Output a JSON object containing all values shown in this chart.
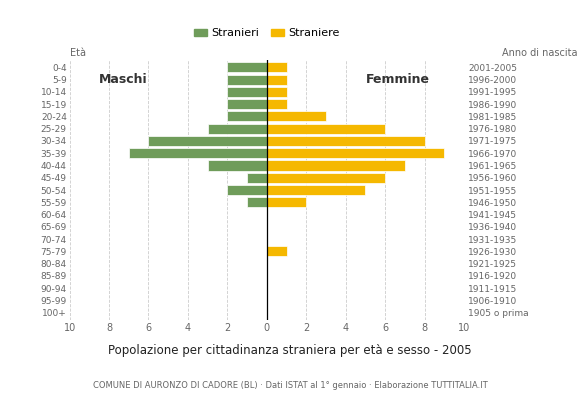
{
  "age_groups": [
    "100+",
    "95-99",
    "90-94",
    "85-89",
    "80-84",
    "75-79",
    "70-74",
    "65-69",
    "60-64",
    "55-59",
    "50-54",
    "45-49",
    "40-44",
    "35-39",
    "30-34",
    "25-29",
    "20-24",
    "15-19",
    "10-14",
    "5-9",
    "0-4"
  ],
  "birth_years": [
    "1905 o prima",
    "1906-1910",
    "1911-1915",
    "1916-1920",
    "1921-1925",
    "1926-1930",
    "1931-1935",
    "1936-1940",
    "1941-1945",
    "1946-1950",
    "1951-1955",
    "1956-1960",
    "1961-1965",
    "1966-1970",
    "1971-1975",
    "1976-1980",
    "1981-1985",
    "1986-1990",
    "1991-1995",
    "1996-2000",
    "2001-2005"
  ],
  "maschi": [
    0,
    0,
    0,
    0,
    0,
    0,
    0,
    0,
    0,
    1,
    2,
    1,
    3,
    7,
    6,
    3,
    2,
    2,
    2,
    2,
    2
  ],
  "femmine": [
    0,
    0,
    0,
    0,
    0,
    1,
    0,
    0,
    0,
    2,
    5,
    6,
    7,
    9,
    8,
    6,
    3,
    1,
    1,
    1,
    1
  ],
  "male_color": "#6f9c5a",
  "female_color": "#f5b800",
  "title": "Popolazione per cittadinanza straniera per età e sesso - 2005",
  "subtitle": "COMUNE DI AURONZO DI CADORE (BL) · Dati ISTAT al 1° gennaio · Elaborazione TUTTITALIA.IT",
  "legend_male": "Stranieri",
  "legend_female": "Straniere",
  "xlim": 10,
  "background_color": "#ffffff",
  "bar_height": 0.82,
  "age_label": "Età",
  "birth_label": "Anno di nascita"
}
